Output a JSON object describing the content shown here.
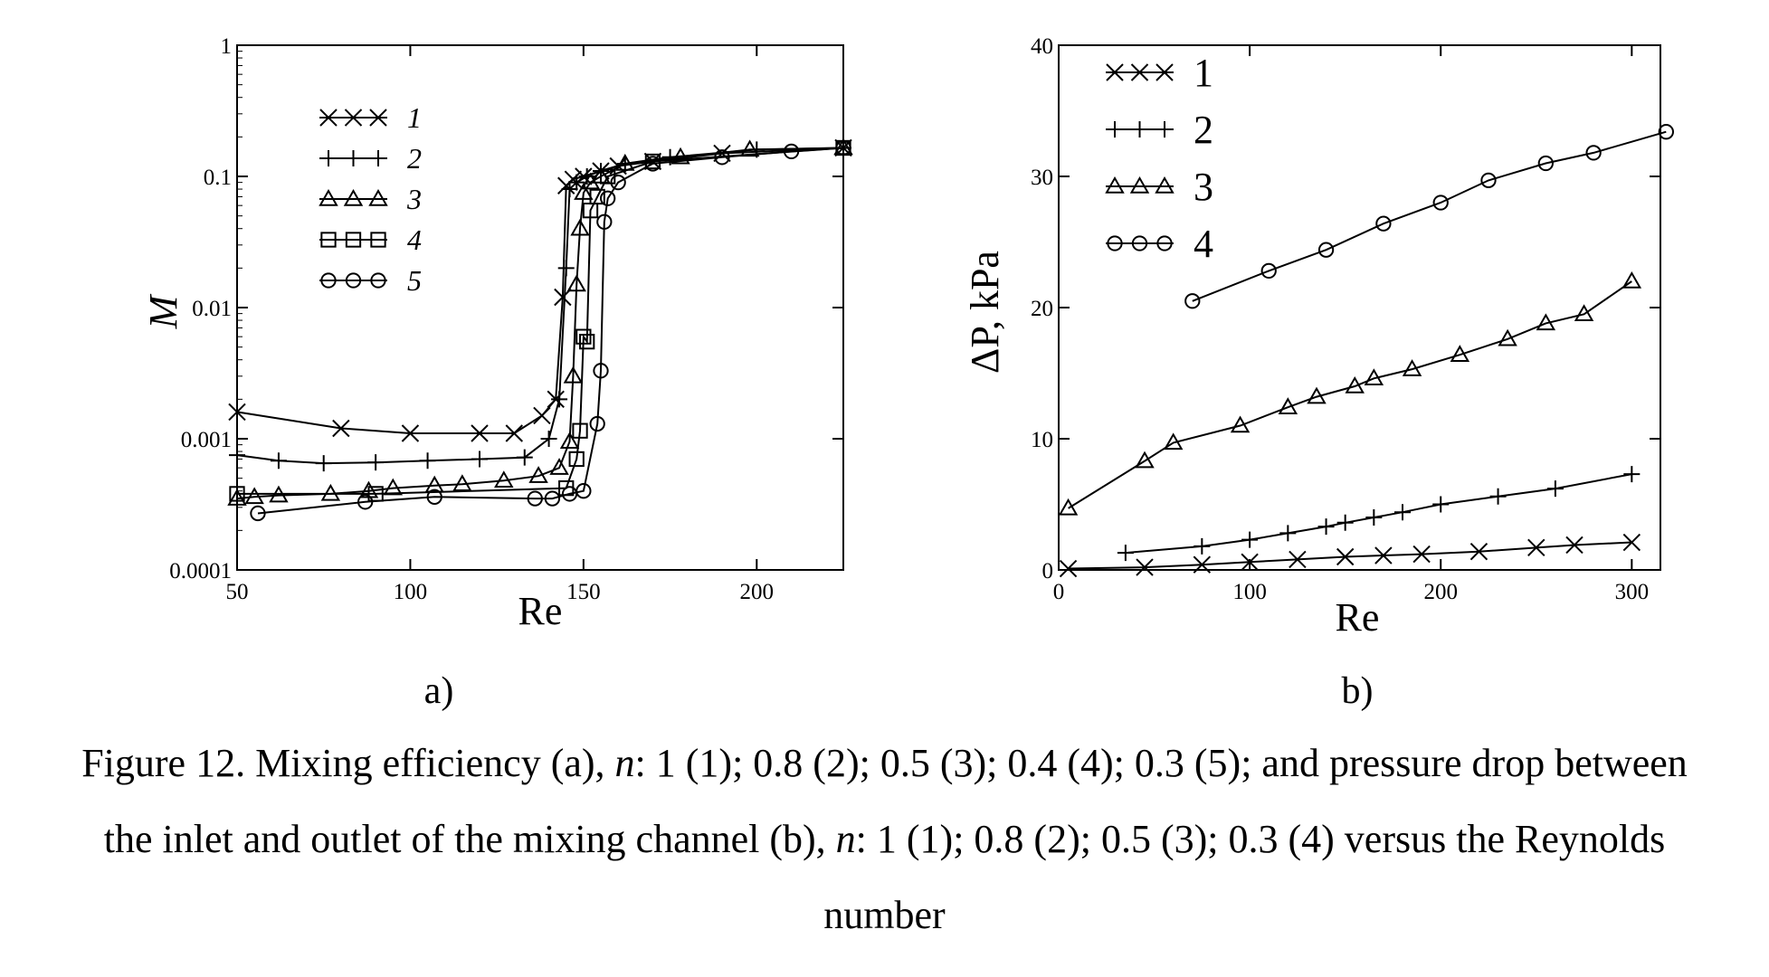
{
  "caption": {
    "text_a": "Figure 12. Mixing efficiency (a), ",
    "n1": "n",
    "text_b": ": 1 (1); 0.8 (2); 0.5 (3); 0.4 (4); 0.3 (5); and pressure drop between the inlet and outlet of the mixing channel (b), ",
    "n2": "n",
    "text_c": ": 1 (1); 0.8 (2); 0.5 (3); 0.3 (4) versus the Reynolds number"
  },
  "chart_data": [
    {
      "panel": "a)",
      "type": "line",
      "xlabel": "Re",
      "ylabel": "M",
      "xlim": [
        50,
        225
      ],
      "ylim": [
        0.0001,
        1
      ],
      "yscale": "log",
      "xticks": [
        "50",
        "100",
        "150",
        "200"
      ],
      "yticks": [
        "0.0001",
        "0.001",
        "0.01",
        "0.1",
        "1"
      ],
      "legend_position": "top-left",
      "series": [
        {
          "name": "1",
          "marker": "x",
          "x": [
            50,
            80,
            100,
            120,
            130,
            138,
            142,
            144,
            145,
            147,
            150,
            155,
            160,
            170,
            190,
            225
          ],
          "y": [
            0.0016,
            0.0012,
            0.0011,
            0.0011,
            0.0011,
            0.0015,
            0.002,
            0.012,
            0.085,
            0.095,
            0.1,
            0.11,
            0.12,
            0.13,
            0.15,
            0.165
          ]
        },
        {
          "name": "2",
          "marker": "+",
          "x": [
            50,
            62,
            75,
            90,
            105,
            120,
            133,
            140,
            143,
            145,
            146,
            148,
            151,
            155,
            162,
            175,
            200,
            225
          ],
          "y": [
            0.00075,
            0.00068,
            0.00065,
            0.00066,
            0.00068,
            0.0007,
            0.00072,
            0.001,
            0.002,
            0.02,
            0.08,
            0.09,
            0.1,
            0.11,
            0.125,
            0.14,
            0.16,
            0.165
          ]
        },
        {
          "name": "3",
          "marker": "triangle",
          "x": [
            50,
            55,
            62,
            77,
            88,
            95,
            107,
            115,
            127,
            137,
            143,
            146,
            147,
            148,
            149,
            150,
            152,
            155,
            162,
            178,
            198,
            225
          ],
          "y": [
            0.00035,
            0.00036,
            0.00037,
            0.00038,
            0.0004,
            0.00042,
            0.00044,
            0.00045,
            0.00048,
            0.00052,
            0.0006,
            0.00095,
            0.003,
            0.015,
            0.04,
            0.075,
            0.09,
            0.1,
            0.125,
            0.14,
            0.16,
            0.165
          ]
        },
        {
          "name": "4",
          "marker": "square",
          "x": [
            50,
            90,
            145,
            148,
            149,
            150,
            151,
            152,
            154,
            157,
            170,
            225
          ],
          "y": [
            0.00038,
            0.00038,
            0.00042,
            0.0007,
            0.00115,
            0.006,
            0.0055,
            0.055,
            0.07,
            0.1,
            0.13,
            0.165
          ]
        },
        {
          "name": "5",
          "marker": "circle",
          "x": [
            56,
            87,
            107,
            136,
            141,
            146,
            150,
            154,
            155,
            156,
            157,
            160,
            170,
            190,
            210,
            225
          ],
          "y": [
            0.00027,
            0.00033,
            0.00036,
            0.00035,
            0.00035,
            0.00038,
            0.0004,
            0.0013,
            0.0033,
            0.045,
            0.068,
            0.09,
            0.125,
            0.14,
            0.155,
            0.165
          ]
        }
      ]
    },
    {
      "panel": "b)",
      "type": "line",
      "xlabel": "Re",
      "ylabel": "ΔP, kPa",
      "xlim": [
        0,
        315
      ],
      "ylim": [
        0,
        40
      ],
      "xticks": [
        "0",
        "100",
        "200",
        "300"
      ],
      "yticks": [
        "0",
        "10",
        "20",
        "30",
        "40"
      ],
      "legend_position": "top-left",
      "series": [
        {
          "name": "1",
          "marker": "x",
          "x": [
            5,
            45,
            75,
            100,
            125,
            150,
            170,
            190,
            220,
            250,
            270,
            300
          ],
          "y": [
            0.1,
            0.2,
            0.4,
            0.6,
            0.8,
            1.0,
            1.1,
            1.2,
            1.4,
            1.7,
            1.9,
            2.1
          ]
        },
        {
          "name": "2",
          "marker": "+",
          "x": [
            35,
            75,
            100,
            120,
            140,
            150,
            165,
            180,
            200,
            230,
            260,
            300
          ],
          "y": [
            1.3,
            1.8,
            2.3,
            2.8,
            3.3,
            3.6,
            4.0,
            4.4,
            5.0,
            5.6,
            6.2,
            7.3
          ]
        },
        {
          "name": "3",
          "marker": "triangle",
          "x": [
            5,
            45,
            60,
            95,
            120,
            135,
            155,
            165,
            185,
            210,
            235,
            255,
            275,
            300
          ],
          "y": [
            4.7,
            8.3,
            9.7,
            11.0,
            12.4,
            13.2,
            14.0,
            14.6,
            15.3,
            16.4,
            17.6,
            18.8,
            19.5,
            22.0
          ]
        },
        {
          "name": "4",
          "marker": "circle",
          "x": [
            70,
            110,
            140,
            170,
            200,
            225,
            255,
            280,
            318
          ],
          "y": [
            20.5,
            22.8,
            24.4,
            26.4,
            28.0,
            29.7,
            31.0,
            31.8,
            33.4
          ]
        }
      ]
    }
  ]
}
